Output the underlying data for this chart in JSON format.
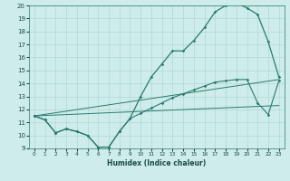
{
  "xlabel": "Humidex (Indice chaleur)",
  "xlim": [
    -0.5,
    23.5
  ],
  "ylim": [
    9,
    20
  ],
  "yticks": [
    9,
    10,
    11,
    12,
    13,
    14,
    15,
    16,
    17,
    18,
    19,
    20
  ],
  "xticks": [
    0,
    1,
    2,
    3,
    4,
    5,
    6,
    7,
    8,
    9,
    10,
    11,
    12,
    13,
    14,
    15,
    16,
    17,
    18,
    19,
    20,
    21,
    22,
    23
  ],
  "bg_color": "#ceecea",
  "grid_color": "#b0d8d4",
  "line_color": "#2a7a70",
  "line1_x": [
    0,
    1,
    2,
    3,
    4,
    5,
    6,
    7,
    8,
    9,
    10,
    11,
    12,
    13,
    14,
    15,
    16,
    17,
    18,
    19,
    20,
    21,
    22,
    23
  ],
  "line1_y": [
    11.5,
    11.2,
    10.2,
    10.5,
    10.3,
    10.0,
    9.1,
    9.1,
    10.3,
    11.3,
    13.0,
    14.5,
    15.5,
    16.5,
    16.5,
    17.3,
    18.3,
    19.5,
    20.0,
    20.2,
    19.8,
    19.3,
    17.2,
    14.5
  ],
  "line2_x": [
    0,
    1,
    2,
    3,
    4,
    5,
    6,
    7,
    8,
    9,
    10,
    11,
    12,
    13,
    14,
    15,
    16,
    17,
    18,
    19,
    20,
    21,
    22,
    23
  ],
  "line2_y": [
    11.5,
    11.2,
    10.2,
    10.5,
    10.3,
    10.0,
    9.1,
    9.1,
    10.3,
    11.3,
    11.7,
    12.1,
    12.5,
    12.9,
    13.2,
    13.5,
    13.8,
    14.1,
    14.2,
    14.3,
    14.3,
    12.5,
    11.6,
    14.2
  ],
  "line3_x": [
    0,
    23
  ],
  "line3_y": [
    11.5,
    14.3
  ],
  "line4_x": [
    0,
    23
  ],
  "line4_y": [
    11.5,
    12.3
  ]
}
